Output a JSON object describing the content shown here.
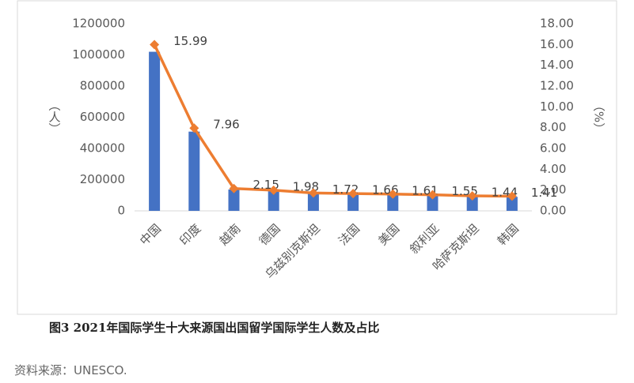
{
  "chart_data": {
    "type": "bar-line",
    "categories": [
      "中国",
      "印度",
      "越南",
      "德国",
      "乌兹别克斯坦",
      "法国",
      "美国",
      "叙利亚",
      "哈萨克斯坦",
      "韩国"
    ],
    "series": [
      {
        "type": "bar",
        "color": "#4472c4",
        "values": [
          1020000,
          508000,
          137000,
          126000,
          110000,
          106000,
          103000,
          99000,
          92000,
          90000
        ]
      },
      {
        "type": "line",
        "axis": "y2",
        "color": "#ed7d31",
        "values": [
          15.99,
          7.96,
          2.15,
          1.98,
          1.72,
          1.66,
          1.61,
          1.55,
          1.44,
          1.41
        ]
      }
    ],
    "ylabel": "（人）",
    "y2label": "（%）",
    "ylim": [
      0,
      1200000
    ],
    "yticks": [
      0,
      200000,
      400000,
      600000,
      800000,
      1000000,
      1200000
    ],
    "y2lim": [
      0,
      18
    ],
    "y2ticks": [
      {
        "value": 0,
        "label": "0.00"
      },
      {
        "value": 2,
        "label": "2.00"
      },
      {
        "value": 4,
        "label": "4.00"
      },
      {
        "value": 6,
        "label": "6.00"
      },
      {
        "value": 8,
        "label": "8.00"
      },
      {
        "value": 10,
        "label": "10.00"
      },
      {
        "value": 12,
        "label": "12.00"
      },
      {
        "value": 14,
        "label": "14.00"
      },
      {
        "value": 16,
        "label": "16.00"
      },
      {
        "value": 18,
        "label": "18.00"
      }
    ]
  },
  "caption": "图3 2021年国际学生十大来源国出国留学国际学生人数及占比",
  "source": "资料来源：UNESCO."
}
